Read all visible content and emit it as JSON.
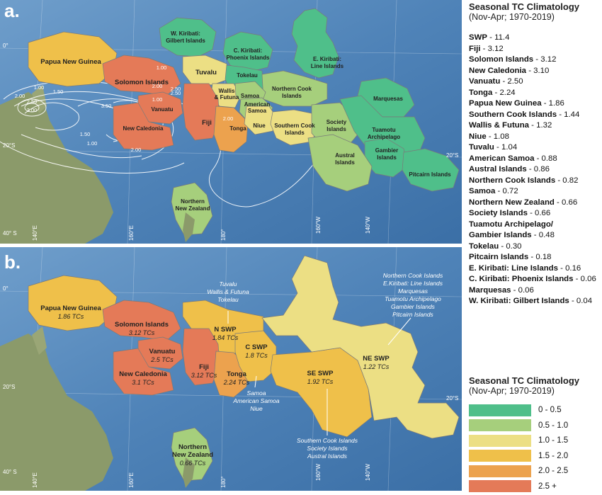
{
  "panel_a": {
    "letter": "a.",
    "region_labels": {
      "png": "Papua New Guinea",
      "solomon": "Solomon Islands",
      "vanuatu": "Vanuatu",
      "newcal": "New Caledonia",
      "fiji": "Fiji",
      "tonga": "Tonga",
      "wkir1": "W. Kiribati:",
      "wkir2": "Gilbert Islands",
      "ckir1": "C. Kiribati:",
      "ckir2": "Phoenix Islands",
      "ekir1": "E. Kiribati:",
      "ekir2": "Line Islands",
      "tuvalu": "Tuvalu",
      "tokelau": "Tokelau",
      "wallis1": "Wallis",
      "wallis2": "& Futuna",
      "samoa": "Samoa",
      "amsamoa1": "American",
      "amsamoa2": "Samoa",
      "niue": "Niue",
      "ncook1": "Northern Cook",
      "ncook2": "Islands",
      "scook1": "Southern Cook",
      "scook2": "Islands",
      "society1": "Society",
      "society2": "Islands",
      "austral1": "Austral",
      "austral2": "Islands",
      "marquesas": "Marquesas",
      "tuamotu1": "Tuamotu",
      "tuamotu2": "Archipelago",
      "gambier1": "Gambier",
      "gambier2": "Islands",
      "pitcairn": "Pitcairn Islands",
      "nnz1": "Northern",
      "nnz2": "New Zealand"
    },
    "contour_labels": [
      "1.00",
      "1.50",
      "2.00",
      "2.50",
      "3.00",
      "2.50",
      "2.00",
      "1.00",
      "2.00",
      "1.50",
      "1.00",
      "2.50",
      "3.50",
      "2.00",
      "1.00"
    ],
    "grid": {
      "eq": "0°",
      "s20w": "20°S",
      "s20e": "20°S",
      "s40": "40° S",
      "e140": "140°E",
      "e160": "160°E",
      "e180": "180°",
      "w160": "160°W",
      "w140": "140°W"
    }
  },
  "panel_b": {
    "letter": "b.",
    "regions": {
      "png_name": "Papua New Guinea",
      "png_val": "1.86 TCs",
      "sol_name": "Solomon Islands",
      "sol_val": "3.12 TCs",
      "van_name": "Vanuatu",
      "van_val": "2.5 TCs",
      "nc_name": "New Caledonia",
      "nc_val": "3.1 TCs",
      "fiji_name": "Fiji",
      "fiji_val": "3.12 TCs",
      "tonga_name": "Tonga",
      "tonga_val": "2.24 TCs",
      "nswp_name": "N SWP",
      "nswp_val": "1.84 TCs",
      "cswp_name": "C SWP",
      "cswp_val": "1.8 TCs",
      "seswp_name": "SE SWP",
      "seswp_val": "1.92 TCs",
      "neswp_name": "NE SWP",
      "neswp_val": "1.22 TCs",
      "nnz_name1": "Northern",
      "nnz_name2": "New Zealand",
      "nnz_val": "0.66 TCs"
    },
    "annotations": {
      "nswp": [
        "Tuvalu",
        "Wallis & Futuna",
        "Tokelau"
      ],
      "cswp": [
        "Samoa",
        "American Samoa",
        "Niue"
      ],
      "seswp": [
        "Southern Cook Islands",
        "Society Islands",
        "Austral Islands"
      ],
      "neswp": [
        "Northern Cook Islands",
        "E.Kiribati: Line Islands",
        "Marquesas",
        "Tuamotu Archipelago",
        "Gambier Islands",
        "Pitcairn Islands"
      ]
    },
    "grid": {
      "eq": "0°",
      "s20w": "20°S",
      "s20e": "20°S",
      "s40": "40° S",
      "e140": "140°E",
      "e160": "160°E",
      "e180": "180°",
      "w160": "160°W",
      "w140": "140°W"
    }
  },
  "climatology": {
    "title": "Seasonal TC Climatology",
    "subtitle": "(Nov-Apr; 1970-2019)",
    "items": [
      {
        "name": "SWP",
        "value": " - 11.4"
      },
      {
        "name": "Fiji",
        "value": " - 3.12"
      },
      {
        "name": "Solomon Islands",
        "value": " - 3.12"
      },
      {
        "name": "New Caledonia",
        "value": " - 3.10"
      },
      {
        "name": "Vanuatu",
        "value": " - 2.50"
      },
      {
        "name": "Tonga",
        "value": " - 2.24"
      },
      {
        "name": "Papua New Guinea",
        "value": " - 1.86"
      },
      {
        "name": "Southern Cook Islands",
        "value": " - 1.44"
      },
      {
        "name": "Wallis & Futuna",
        "value": " - 1.32"
      },
      {
        "name": "Niue",
        "value": " - 1.08"
      },
      {
        "name": "Tuvalu",
        "value": " - 1.04"
      },
      {
        "name": "American Samoa",
        "value": " - 0.88"
      },
      {
        "name": "Austral Islands",
        "value": " - 0.86"
      },
      {
        "name": "Northern Cook Islands",
        "value": " - 0.82"
      },
      {
        "name": "Samoa",
        "value": " - 0.72"
      },
      {
        "name": "Northern New Zealand",
        "value": " - 0.66"
      },
      {
        "name": "Society Islands",
        "value": " - 0.66"
      },
      {
        "name": "Tuamotu Archipelago/",
        "value": ""
      },
      {
        "name": "Gambier Islands",
        "value": " - 0.48"
      },
      {
        "name": "Tokelau",
        "value": " - 0.30"
      },
      {
        "name": "Pitcairn Islands",
        "value": " - 0.18"
      },
      {
        "name": "E. Kiribati: Line Islands",
        "value": " - 0.16"
      },
      {
        "name": "C. Kiribati: Phoenix Islands",
        "value": " - 0.06"
      },
      {
        "name": "Marquesas",
        "value": " - 0.06"
      },
      {
        "name": "W. Kiribati: Gilbert Islands",
        "value": " - 0.04"
      }
    ]
  },
  "legend": {
    "title": "Seasonal TC Climatology",
    "subtitle": "(Nov-Apr; 1970-2019)",
    "bins": [
      {
        "label": "0 - 0.5",
        "color": "#4fbf8a"
      },
      {
        "label": "0.5 - 1.0",
        "color": "#a6cf7c"
      },
      {
        "label": "1.0 - 1.5",
        "color": "#ecdf84"
      },
      {
        "label": "1.5 - 2.0",
        "color": "#efc04a"
      },
      {
        "label": "2.0 - 2.5",
        "color": "#eca24e"
      },
      {
        "label": "2.5 +",
        "color": "#e47a58"
      }
    ]
  }
}
